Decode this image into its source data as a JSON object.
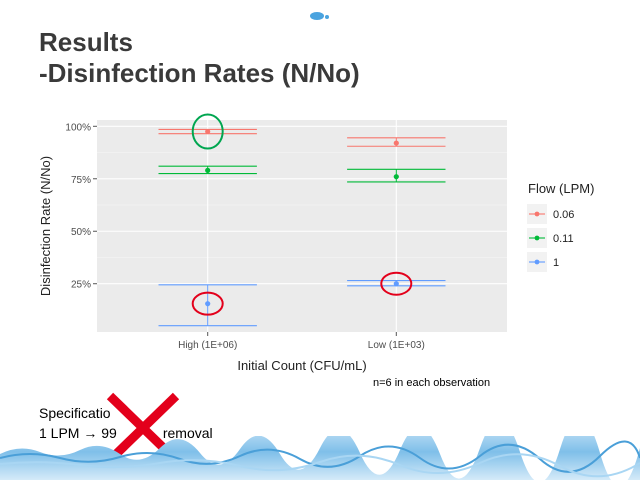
{
  "slide": {
    "title_line1": "Results",
    "title_line2": "-Disinfection Rates (N/No)",
    "spec_line1": "Specificatio",
    "spec_line2_prefix": "1 LPM",
    "spec_line2_arrow": "→",
    "spec_line2_suffix": "99",
    "spec_line2_end": "removal",
    "note": "n=6 in each observation"
  },
  "chart_data": {
    "type": "scatter",
    "xlabel": "Initial Count (CFU/mL)",
    "ylabel": "Disinfection Rate (N/No)",
    "categories": [
      "High (1E+06)",
      "Low (1E+03)"
    ],
    "y_ticks": [
      "25%",
      "50%",
      "75%",
      "100%"
    ],
    "y_tick_values": [
      0.25,
      0.5,
      0.75,
      1.0
    ],
    "ylim": [
      0.02,
      1.03
    ],
    "grid": true,
    "legend_title": "Flow (LPM)",
    "legend_position": "right",
    "series": [
      {
        "name": "0.06",
        "color": "#f8766d",
        "mean": [
          0.975,
          0.92
        ],
        "ci_low": [
          0.965,
          0.905
        ],
        "ci_high": [
          0.985,
          0.945
        ]
      },
      {
        "name": "0.11",
        "color": "#00ba38",
        "mean": [
          0.79,
          0.76
        ],
        "ci_low": [
          0.775,
          0.735
        ],
        "ci_high": [
          0.81,
          0.795
        ]
      },
      {
        "name": "1",
        "color": "#619cff",
        "mean": [
          0.155,
          0.25
        ],
        "ci_low": [
          0.05,
          0.24
        ],
        "ci_high": [
          0.245,
          0.265
        ]
      }
    ],
    "highlight_circles": [
      {
        "category": 0,
        "series": "0.06",
        "color": "#00a650"
      },
      {
        "category": 0,
        "series": "1",
        "color": "#e3001b"
      },
      {
        "category": 1,
        "series": "1",
        "color": "#e3001b"
      }
    ]
  },
  "colors": {
    "title": "#3a3a3a",
    "panel": "#ebebeb",
    "grid": "#ffffff",
    "xmark": "#e3001b"
  }
}
